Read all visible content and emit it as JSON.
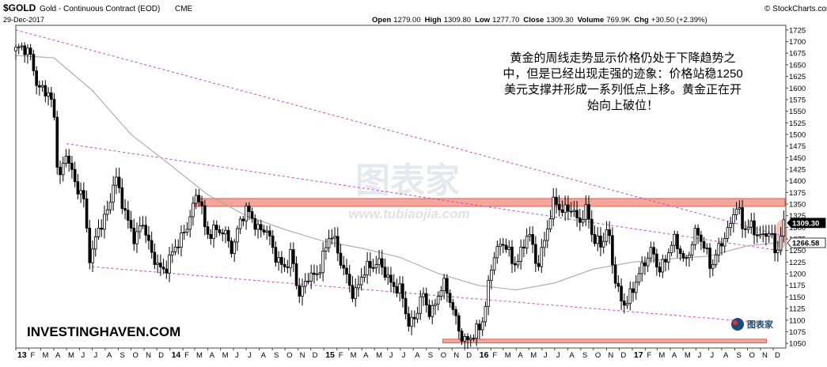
{
  "header": {
    "symbol": "$GOLD",
    "name": "Gold - Continuous Contract (EOD)",
    "exchange": "CME",
    "date": "29-Dec-2017",
    "source": "© StockCharts.com",
    "ohlc": [
      {
        "label": "Open",
        "value": "1279.00"
      },
      {
        "label": "High",
        "value": "1309.80"
      },
      {
        "label": "Low",
        "value": "1277.70"
      },
      {
        "label": "Close",
        "value": "1309.30"
      },
      {
        "label": "Volume",
        "value": "769.9K"
      },
      {
        "label": "Chg",
        "value": "+30.50 (+2.39%)"
      }
    ]
  },
  "annotation_lines": [
    "黄金的周线走势显示价格仍处于下降趋势之",
    "中，但是已经出现走强的迹象：价格站稳1250",
    "美元支撑并形成一系列低点上移。黄金正在开",
    "始向上破位！"
  ],
  "watermark": {
    "cn": "图表家",
    "url": "www.tubiaojia.com"
  },
  "footer_brand": "INVESTINGHAVEN.COM",
  "logo_text": "图表家",
  "colors": {
    "candle": "#000000",
    "ma": "#a9a9a9",
    "trend": "#cc44cc",
    "band": "#f08070",
    "band_edge": "#d8483a",
    "price_tag": "#000000"
  },
  "chart_data": {
    "type": "candlestick",
    "y_ticks": [
      1050,
      1075,
      1100,
      1125,
      1150,
      1175,
      1200,
      1225,
      1250,
      1275,
      1300,
      1325,
      1350,
      1375,
      1400,
      1425,
      1450,
      1475,
      1500,
      1525,
      1550,
      1575,
      1600,
      1625,
      1650,
      1675,
      1700,
      1725
    ],
    "ylim": [
      1040,
      1735
    ],
    "x_range": [
      "2013-01-01",
      "2017-12-31"
    ],
    "x_ticks": [
      {
        "label": "13",
        "date": "2013-01-01",
        "bold": true
      },
      {
        "label": "F",
        "date": "2013-02-01"
      },
      {
        "label": "M",
        "date": "2013-03-01"
      },
      {
        "label": "A",
        "date": "2013-04-01"
      },
      {
        "label": "M",
        "date": "2013-05-01"
      },
      {
        "label": "J",
        "date": "2013-06-01"
      },
      {
        "label": "J",
        "date": "2013-07-01"
      },
      {
        "label": "A",
        "date": "2013-08-01"
      },
      {
        "label": "S",
        "date": "2013-09-01"
      },
      {
        "label": "O",
        "date": "2013-10-01"
      },
      {
        "label": "N",
        "date": "2013-11-01"
      },
      {
        "label": "D",
        "date": "2013-12-01"
      },
      {
        "label": "14",
        "date": "2014-01-01",
        "bold": true
      },
      {
        "label": "F",
        "date": "2014-02-01"
      },
      {
        "label": "M",
        "date": "2014-03-01"
      },
      {
        "label": "A",
        "date": "2014-04-01"
      },
      {
        "label": "M",
        "date": "2014-05-01"
      },
      {
        "label": "J",
        "date": "2014-06-01"
      },
      {
        "label": "J",
        "date": "2014-07-01"
      },
      {
        "label": "A",
        "date": "2014-08-01"
      },
      {
        "label": "S",
        "date": "2014-09-01"
      },
      {
        "label": "O",
        "date": "2014-10-01"
      },
      {
        "label": "N",
        "date": "2014-11-01"
      },
      {
        "label": "D",
        "date": "2014-12-01"
      },
      {
        "label": "15",
        "date": "2015-01-01",
        "bold": true
      },
      {
        "label": "F",
        "date": "2015-02-01"
      },
      {
        "label": "M",
        "date": "2015-03-01"
      },
      {
        "label": "A",
        "date": "2015-04-01"
      },
      {
        "label": "M",
        "date": "2015-05-01"
      },
      {
        "label": "J",
        "date": "2015-06-01"
      },
      {
        "label": "J",
        "date": "2015-07-01"
      },
      {
        "label": "A",
        "date": "2015-08-01"
      },
      {
        "label": "S",
        "date": "2015-09-01"
      },
      {
        "label": "O",
        "date": "2015-10-01"
      },
      {
        "label": "N",
        "date": "2015-11-01"
      },
      {
        "label": "D",
        "date": "2015-12-01"
      },
      {
        "label": "16",
        "date": "2016-01-01",
        "bold": true
      },
      {
        "label": "F",
        "date": "2016-02-01"
      },
      {
        "label": "M",
        "date": "2016-03-01"
      },
      {
        "label": "A",
        "date": "2016-04-01"
      },
      {
        "label": "M",
        "date": "2016-05-01"
      },
      {
        "label": "J",
        "date": "2016-06-01"
      },
      {
        "label": "J",
        "date": "2016-07-01"
      },
      {
        "label": "A",
        "date": "2016-08-01"
      },
      {
        "label": "S",
        "date": "2016-09-01"
      },
      {
        "label": "O",
        "date": "2016-10-01"
      },
      {
        "label": "N",
        "date": "2016-11-01"
      },
      {
        "label": "D",
        "date": "2016-12-01"
      },
      {
        "label": "17",
        "date": "2017-01-01",
        "bold": true
      },
      {
        "label": "F",
        "date": "2017-02-01"
      },
      {
        "label": "M",
        "date": "2017-03-01"
      },
      {
        "label": "A",
        "date": "2017-04-01"
      },
      {
        "label": "M",
        "date": "2017-05-01"
      },
      {
        "label": "J",
        "date": "2017-06-01"
      },
      {
        "label": "J",
        "date": "2017-07-01"
      },
      {
        "label": "A",
        "date": "2017-08-01"
      },
      {
        "label": "S",
        "date": "2017-09-01"
      },
      {
        "label": "O",
        "date": "2017-10-01"
      },
      {
        "label": "N",
        "date": "2017-11-01"
      },
      {
        "label": "D",
        "date": "2017-12-01"
      }
    ],
    "price_path": [
      [
        "2013-01-01",
        1680
      ],
      [
        "2013-01-20",
        1690
      ],
      [
        "2013-02-10",
        1670
      ],
      [
        "2013-02-25",
        1595
      ],
      [
        "2013-03-15",
        1600
      ],
      [
        "2013-04-05",
        1560
      ],
      [
        "2013-04-16",
        1390
      ],
      [
        "2013-05-05",
        1470
      ],
      [
        "2013-05-25",
        1385
      ],
      [
        "2013-06-15",
        1375
      ],
      [
        "2013-06-28",
        1210
      ],
      [
        "2013-07-15",
        1290
      ],
      [
        "2013-08-10",
        1330
      ],
      [
        "2013-08-28",
        1415
      ],
      [
        "2013-09-20",
        1330
      ],
      [
        "2013-10-15",
        1270
      ],
      [
        "2013-11-01",
        1320
      ],
      [
        "2013-11-20",
        1245
      ],
      [
        "2013-12-20",
        1200
      ],
      [
        "2014-01-15",
        1255
      ],
      [
        "2014-02-10",
        1290
      ],
      [
        "2014-03-14",
        1385
      ],
      [
        "2014-03-31",
        1280
      ],
      [
        "2014-04-20",
        1295
      ],
      [
        "2014-05-15",
        1290
      ],
      [
        "2014-06-02",
        1245
      ],
      [
        "2014-06-20",
        1320
      ],
      [
        "2014-07-10",
        1340
      ],
      [
        "2014-08-01",
        1290
      ],
      [
        "2014-08-20",
        1300
      ],
      [
        "2014-09-15",
        1230
      ],
      [
        "2014-10-05",
        1210
      ],
      [
        "2014-10-20",
        1250
      ],
      [
        "2014-11-07",
        1140
      ],
      [
        "2014-11-25",
        1195
      ],
      [
        "2014-12-20",
        1195
      ],
      [
        "2015-01-22",
        1295
      ],
      [
        "2015-02-10",
        1235
      ],
      [
        "2015-03-17",
        1150
      ],
      [
        "2015-04-10",
        1210
      ],
      [
        "2015-05-18",
        1225
      ],
      [
        "2015-06-10",
        1180
      ],
      [
        "2015-07-10",
        1160
      ],
      [
        "2015-07-24",
        1080
      ],
      [
        "2015-08-15",
        1120
      ],
      [
        "2015-08-25",
        1160
      ],
      [
        "2015-09-15",
        1110
      ],
      [
        "2015-10-15",
        1185
      ],
      [
        "2015-11-01",
        1140
      ],
      [
        "2015-11-20",
        1080
      ],
      [
        "2015-12-04",
        1050
      ],
      [
        "2015-12-20",
        1065
      ],
      [
        "2016-01-15",
        1090
      ],
      [
        "2016-02-11",
        1245
      ],
      [
        "2016-03-10",
        1270
      ],
      [
        "2016-03-28",
        1215
      ],
      [
        "2016-04-20",
        1250
      ],
      [
        "2016-05-02",
        1300
      ],
      [
        "2016-05-25",
        1210
      ],
      [
        "2016-06-10",
        1270
      ],
      [
        "2016-06-24",
        1325
      ],
      [
        "2016-07-06",
        1365
      ],
      [
        "2016-07-20",
        1330
      ],
      [
        "2016-08-10",
        1345
      ],
      [
        "2016-08-31",
        1310
      ],
      [
        "2016-09-20",
        1340
      ],
      [
        "2016-10-04",
        1270
      ],
      [
        "2016-10-25",
        1265
      ],
      [
        "2016-11-08",
        1300
      ],
      [
        "2016-11-25",
        1180
      ],
      [
        "2016-12-15",
        1130
      ],
      [
        "2016-12-30",
        1150
      ],
      [
        "2017-01-20",
        1200
      ],
      [
        "2017-02-20",
        1255
      ],
      [
        "2017-03-10",
        1200
      ],
      [
        "2017-04-15",
        1280
      ],
      [
        "2017-05-09",
        1220
      ],
      [
        "2017-06-06",
        1295
      ],
      [
        "2017-06-30",
        1245
      ],
      [
        "2017-07-10",
        1210
      ],
      [
        "2017-08-01",
        1265
      ],
      [
        "2017-08-20",
        1290
      ],
      [
        "2017-09-08",
        1355
      ],
      [
        "2017-09-25",
        1295
      ],
      [
        "2017-10-15",
        1305
      ],
      [
        "2017-11-01",
        1275
      ],
      [
        "2017-11-25",
        1295
      ],
      [
        "2017-12-12",
        1240
      ],
      [
        "2017-12-29",
        1309
      ]
    ],
    "ma_path": [
      [
        "2013-01-01",
        1670
      ],
      [
        "2013-04-01",
        1665
      ],
      [
        "2013-07-01",
        1595
      ],
      [
        "2013-10-01",
        1500
      ],
      [
        "2014-01-01",
        1435
      ],
      [
        "2014-04-01",
        1370
      ],
      [
        "2014-07-01",
        1325
      ],
      [
        "2014-10-01",
        1295
      ],
      [
        "2015-01-01",
        1270
      ],
      [
        "2015-04-01",
        1255
      ],
      [
        "2015-07-01",
        1235
      ],
      [
        "2015-10-01",
        1200
      ],
      [
        "2016-01-01",
        1175
      ],
      [
        "2016-04-01",
        1165
      ],
      [
        "2016-07-01",
        1180
      ],
      [
        "2016-10-01",
        1210
      ],
      [
        "2017-01-01",
        1225
      ],
      [
        "2017-04-01",
        1232
      ],
      [
        "2017-07-01",
        1238
      ],
      [
        "2017-10-01",
        1260
      ],
      [
        "2017-12-29",
        1268
      ]
    ],
    "trendlines": [
      {
        "from": [
          "2013-01-01",
          1725
        ],
        "to": [
          "2017-12-29",
          1280
        ]
      },
      {
        "from": [
          "2013-05-01",
          1480
        ],
        "to": [
          "2017-12-29",
          1248
        ]
      },
      {
        "from": [
          "2013-07-01",
          1215
        ],
        "to": [
          "2017-10-31",
          1095
        ]
      }
    ],
    "resistance_band": {
      "x": [
        "2014-03-01",
        "2017-12-29"
      ],
      "y": [
        1345,
        1362
      ]
    },
    "support_band": {
      "x": [
        "2015-10-10",
        "2017-11-15"
      ],
      "y": [
        1051,
        1059
      ]
    },
    "price_tags": [
      {
        "value": 1309.3,
        "label": "1309.30",
        "filled": true
      },
      {
        "value": 1266.58,
        "label": "1266.58",
        "filled": false
      }
    ]
  }
}
